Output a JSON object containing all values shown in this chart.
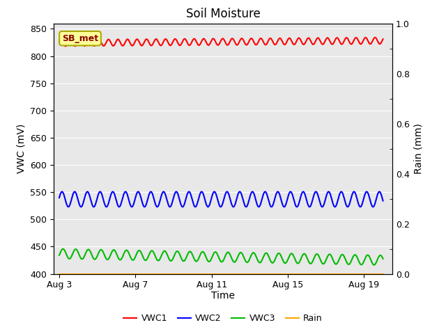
{
  "title": "Soil Moisture",
  "xlabel": "Time",
  "ylabel_left": "VWC (mV)",
  "ylabel_right": "Rain (mm)",
  "x_ticks_labels": [
    "Aug 3",
    "Aug 7",
    "Aug 11",
    "Aug 15",
    "Aug 19"
  ],
  "x_ticks_pos": [
    0,
    4,
    8,
    12,
    16
  ],
  "xlim": [
    -0.3,
    17.5
  ],
  "ylim_left": [
    400,
    860
  ],
  "ylim_right": [
    0.0,
    1.0
  ],
  "yticks_left": [
    400,
    450,
    500,
    550,
    600,
    650,
    700,
    750,
    800,
    850
  ],
  "yticks_right": [
    0.0,
    0.2,
    0.4,
    0.6,
    0.8,
    1.0
  ],
  "vwc1_base": 824,
  "vwc1_amp": 6,
  "vwc1_freq_per_day": 2.0,
  "vwc1_trend": 0.25,
  "vwc2_base": 537,
  "vwc2_amp": 14,
  "vwc2_freq_per_day": 1.5,
  "vwc3_base": 437,
  "vwc3_amp": 9,
  "vwc3_freq_per_day": 1.5,
  "vwc3_trend": -0.7,
  "color_vwc1": "#FF0000",
  "color_vwc2": "#0000FF",
  "color_vwc3": "#00BB00",
  "color_rain": "#FFA500",
  "bg_color": "#E8E8E8",
  "annotation_text": "SB_met",
  "legend_labels": [
    "VWC1",
    "VWC2",
    "VWC3",
    "Rain"
  ],
  "n_points": 600,
  "x_start": 0,
  "x_end": 17,
  "linewidth": 1.5,
  "grid_color": "#FFFFFF",
  "grid_lw": 0.8,
  "tick_fontsize": 9,
  "label_fontsize": 10,
  "title_fontsize": 12
}
